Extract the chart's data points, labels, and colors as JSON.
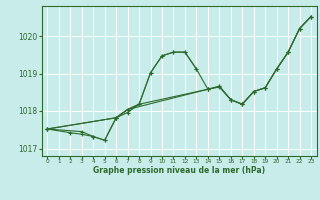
{
  "xlabel": "Graphe pression niveau de la mer (hPa)",
  "xlim": [
    -0.5,
    23.5
  ],
  "ylim": [
    1016.8,
    1020.8
  ],
  "yticks": [
    1017,
    1018,
    1019,
    1020
  ],
  "xticks": [
    0,
    1,
    2,
    3,
    4,
    5,
    6,
    7,
    8,
    9,
    10,
    11,
    12,
    13,
    14,
    15,
    16,
    17,
    18,
    19,
    20,
    21,
    22,
    23
  ],
  "bg_color": "#c8ece9",
  "line_color": "#2d6a2d",
  "grid_color": "#ffffff",
  "lines": [
    {
      "x": [
        0,
        3,
        4,
        5,
        6,
        7,
        8,
        9,
        10,
        11,
        12,
        13
      ],
      "y": [
        1017.52,
        1017.45,
        1017.32,
        1017.22,
        1017.82,
        1017.96,
        1018.18,
        1019.02,
        1019.47,
        1019.57,
        1019.57,
        1019.12
      ]
    },
    {
      "x": [
        0,
        2,
        3,
        4,
        5,
        6,
        7,
        8,
        14,
        15,
        16,
        17,
        18,
        19,
        20,
        21,
        22,
        23
      ],
      "y": [
        1017.52,
        1017.42,
        1017.38,
        1017.32,
        1017.22,
        1017.82,
        1018.04,
        1018.18,
        1018.58,
        1018.64,
        1018.3,
        1018.18,
        1018.52,
        1018.62,
        1019.12,
        1019.57,
        1020.2,
        1020.52
      ]
    },
    {
      "x": [
        0,
        6,
        7,
        14,
        15,
        16,
        17,
        18,
        19,
        20,
        21,
        22,
        23
      ],
      "y": [
        1017.52,
        1017.82,
        1018.04,
        1018.58,
        1018.66,
        1018.3,
        1018.18,
        1018.52,
        1018.62,
        1019.12,
        1019.57,
        1020.2,
        1020.52
      ]
    },
    {
      "x": [
        0,
        6,
        7,
        8,
        9,
        10,
        11,
        12,
        13,
        14,
        15,
        16,
        17,
        18,
        19,
        20,
        21,
        22,
        23
      ],
      "y": [
        1017.52,
        1017.82,
        1018.04,
        1018.18,
        1019.02,
        1019.47,
        1019.57,
        1019.57,
        1019.12,
        1018.58,
        1018.66,
        1018.3,
        1018.18,
        1018.52,
        1018.62,
        1019.12,
        1019.57,
        1020.2,
        1020.52
      ]
    }
  ]
}
